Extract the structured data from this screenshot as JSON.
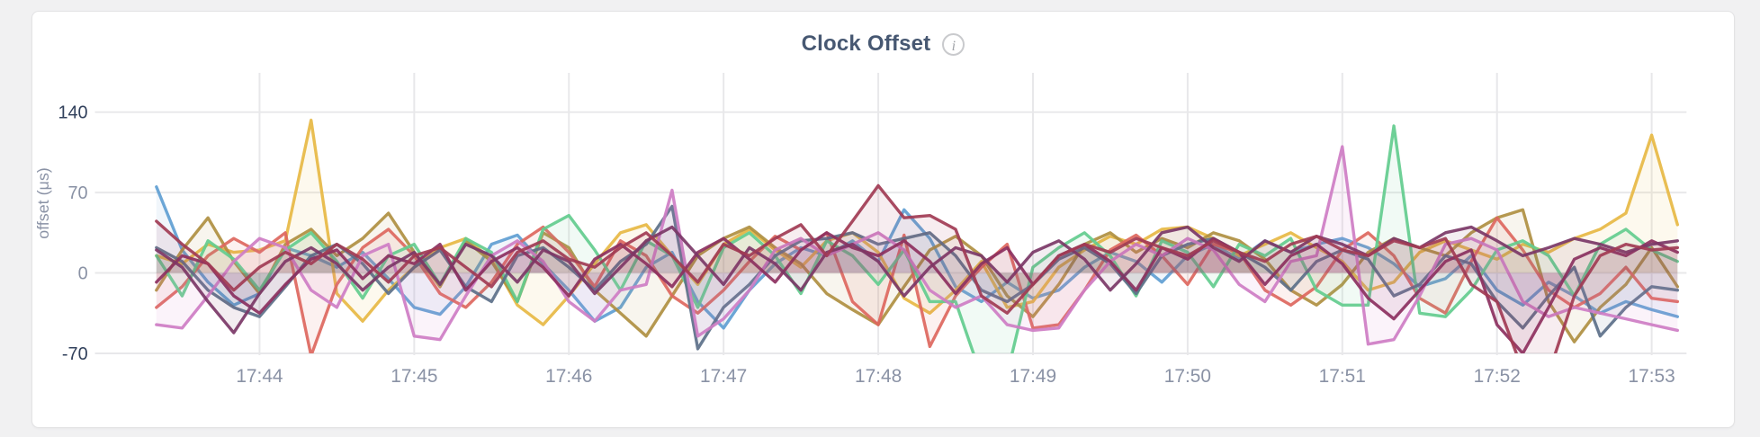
{
  "header": {
    "title": "Clock Offset",
    "info_icon_glyph": "i"
  },
  "chart_data": {
    "type": "line",
    "title": "Clock Offset",
    "ylabel": "offset (μs)",
    "xlabel": "",
    "ylim": [
      -70,
      140
    ],
    "grid": true,
    "legend": "none",
    "y_ticks": [
      {
        "label": "140",
        "v": 140,
        "emph": true
      },
      {
        "label": "70",
        "v": 70,
        "emph": false
      },
      {
        "label": "0",
        "v": 0,
        "emph": false
      },
      {
        "label": "-70",
        "v": -70,
        "emph": true
      }
    ],
    "x_start_time": "17:43:20",
    "x_interval_seconds": 10,
    "x_ticks": [
      {
        "label": "17:44",
        "t": 40
      },
      {
        "label": "17:45",
        "t": 100
      },
      {
        "label": "17:46",
        "t": 160
      },
      {
        "label": "17:47",
        "t": 220
      },
      {
        "label": "17:48",
        "t": 280
      },
      {
        "label": "17:49",
        "t": 340
      },
      {
        "label": "17:50",
        "t": 400
      },
      {
        "label": "17:51",
        "t": 460
      },
      {
        "label": "17:52",
        "t": 520
      },
      {
        "label": "17:53",
        "t": 580
      }
    ],
    "colors": {
      "grid": "#e8e8ea",
      "tick_text": "#8a92a5",
      "tick_text_emphasis": "#32415c"
    },
    "series": [
      {
        "id": "s1-blue",
        "color": "#5F9ED3",
        "values": [
          75,
          20,
          -8,
          -28,
          -18,
          22,
          15,
          5,
          18,
          -5,
          -30,
          -36,
          -12,
          25,
          33,
          8,
          -15,
          -42,
          -30,
          5,
          18,
          -25,
          -48,
          -15,
          8,
          22,
          15,
          28,
          10,
          55,
          30,
          -12,
          -25,
          -8,
          -22,
          -15,
          5,
          18,
          10,
          -8,
          15,
          25,
          12,
          28,
          18,
          25,
          30,
          22,
          8,
          -12,
          -5,
          15,
          -15,
          -28,
          -8,
          -20,
          -35,
          -25,
          -32,
          -38
        ]
      },
      {
        "id": "s2-gold",
        "color": "#E7B844",
        "values": [
          15,
          8,
          25,
          18,
          20,
          28,
          133,
          -18,
          -42,
          -15,
          5,
          22,
          30,
          12,
          -28,
          -45,
          -20,
          8,
          35,
          42,
          15,
          -10,
          25,
          38,
          20,
          5,
          28,
          35,
          18,
          -22,
          -35,
          -15,
          10,
          -30,
          -25,
          5,
          20,
          32,
          25,
          38,
          40,
          30,
          15,
          25,
          35,
          22,
          10,
          -15,
          -8,
          18,
          28,
          20,
          12,
          25,
          18,
          30,
          38,
          52,
          120,
          42
        ]
      },
      {
        "id": "s3-bronze",
        "color": "#AF8F41",
        "values": [
          -15,
          20,
          48,
          10,
          -18,
          25,
          38,
          15,
          30,
          52,
          18,
          -12,
          28,
          10,
          -25,
          35,
          22,
          -15,
          -35,
          -55,
          -20,
          15,
          30,
          40,
          22,
          8,
          -18,
          -32,
          -45,
          -12,
          20,
          32,
          15,
          -20,
          -38,
          -10,
          25,
          35,
          18,
          30,
          22,
          35,
          28,
          12,
          -15,
          -28,
          -10,
          18,
          30,
          22,
          15,
          35,
          48,
          55,
          -25,
          -60,
          -30,
          -10,
          22,
          -12
        ]
      },
      {
        "id": "s4-salmon",
        "color": "#DD675E",
        "values": [
          -30,
          -12,
          15,
          30,
          18,
          35,
          -72,
          -10,
          22,
          38,
          15,
          -18,
          -30,
          -8,
          25,
          40,
          18,
          -12,
          28,
          15,
          -20,
          -35,
          -15,
          10,
          32,
          20,
          35,
          -25,
          -45,
          33,
          -64,
          -20,
          5,
          25,
          -48,
          -45,
          -15,
          20,
          33,
          15,
          -10,
          25,
          18,
          -15,
          -28,
          -12,
          20,
          35,
          15,
          -22,
          -35,
          10,
          48,
          20,
          -15,
          -30,
          -18,
          5,
          -22,
          -25
        ]
      },
      {
        "id": "s5-green",
        "color": "#63CC8E",
        "values": [
          15,
          -20,
          28,
          12,
          -15,
          20,
          35,
          10,
          -22,
          15,
          25,
          -10,
          30,
          18,
          -25,
          38,
          50,
          20,
          -15,
          28,
          15,
          -30,
          22,
          35,
          15,
          -18,
          28,
          15,
          -10,
          20,
          -25,
          -25,
          -90,
          -88,
          5,
          22,
          35,
          15,
          -20,
          28,
          18,
          -12,
          25,
          15,
          30,
          -15,
          -28,
          -28,
          128,
          -35,
          -38,
          -15,
          20,
          28,
          15,
          -20,
          25,
          38,
          20,
          10
        ]
      },
      {
        "id": "s6-slate",
        "color": "#5C7089",
        "values": [
          22,
          10,
          -15,
          -30,
          -38,
          -12,
          15,
          25,
          8,
          -18,
          5,
          20,
          -12,
          -25,
          15,
          22,
          5,
          -15,
          10,
          25,
          58,
          -66,
          -30,
          -10,
          15,
          28,
          30,
          35,
          25,
          30,
          35,
          15,
          -15,
          -25,
          -10,
          12,
          22,
          8,
          -18,
          15,
          25,
          30,
          18,
          5,
          -15,
          10,
          20,
          12,
          -20,
          -10,
          15,
          8,
          -25,
          -48,
          -20,
          5,
          -55,
          -30,
          -12,
          -15
        ]
      },
      {
        "id": "s7-orchid",
        "color": "#CE7DC4",
        "values": [
          -45,
          -48,
          -20,
          10,
          30,
          22,
          -15,
          -30,
          15,
          25,
          -55,
          -58,
          -20,
          15,
          28,
          10,
          -25,
          -42,
          -15,
          -10,
          72,
          -55,
          -40,
          -15,
          20,
          30,
          15,
          25,
          35,
          20,
          -15,
          -30,
          -20,
          -45,
          -50,
          -48,
          -15,
          10,
          25,
          15,
          30,
          20,
          -10,
          -25,
          10,
          15,
          110,
          -62,
          -58,
          -20,
          25,
          30,
          20,
          -25,
          -38,
          -30,
          -35,
          -40,
          -45,
          -50
        ]
      },
      {
        "id": "s8-berry",
        "color": "#8C3060",
        "values": [
          -8,
          15,
          8,
          -20,
          -35,
          -10,
          12,
          20,
          -5,
          15,
          8,
          25,
          -15,
          10,
          22,
          5,
          -20,
          12,
          25,
          8,
          -12,
          18,
          30,
          12,
          -8,
          20,
          35,
          22,
          15,
          28,
          10,
          -18,
          8,
          22,
          -10,
          15,
          25,
          10,
          -15,
          22,
          12,
          30,
          18,
          -10,
          15,
          25,
          8,
          -22,
          -40,
          -15,
          10,
          20,
          -45,
          -70,
          -30,
          12,
          22,
          15,
          28,
          18
        ]
      },
      {
        "id": "s9-plum",
        "color": "#7B3767",
        "values": [
          20,
          5,
          -25,
          -52,
          -18,
          10,
          22,
          8,
          -15,
          5,
          18,
          -10,
          25,
          15,
          -8,
          20,
          10,
          -18,
          5,
          28,
          40,
          15,
          -10,
          22,
          8,
          -15,
          18,
          25,
          10,
          -20,
          5,
          22,
          15,
          -8,
          18,
          28,
          12,
          -15,
          8,
          35,
          40,
          22,
          10,
          28,
          18,
          32,
          25,
          15,
          30,
          22,
          35,
          40,
          28,
          15,
          22,
          30,
          25,
          18,
          25,
          28
        ]
      },
      {
        "id": "s10-maroon",
        "color": "#A13B54",
        "values": [
          45,
          25,
          8,
          -15,
          5,
          18,
          8,
          25,
          12,
          -8,
          15,
          22,
          5,
          -12,
          18,
          28,
          12,
          5,
          22,
          35,
          15,
          -8,
          25,
          15,
          30,
          42,
          15,
          45,
          76,
          48,
          50,
          38,
          -20,
          -35,
          -10,
          15,
          25,
          18,
          30,
          22,
          15,
          28,
          18,
          10,
          25,
          32,
          20,
          15,
          28,
          22,
          30,
          -10,
          -25,
          -85,
          -88,
          -20,
          15,
          25,
          20,
          22
        ]
      }
    ]
  }
}
